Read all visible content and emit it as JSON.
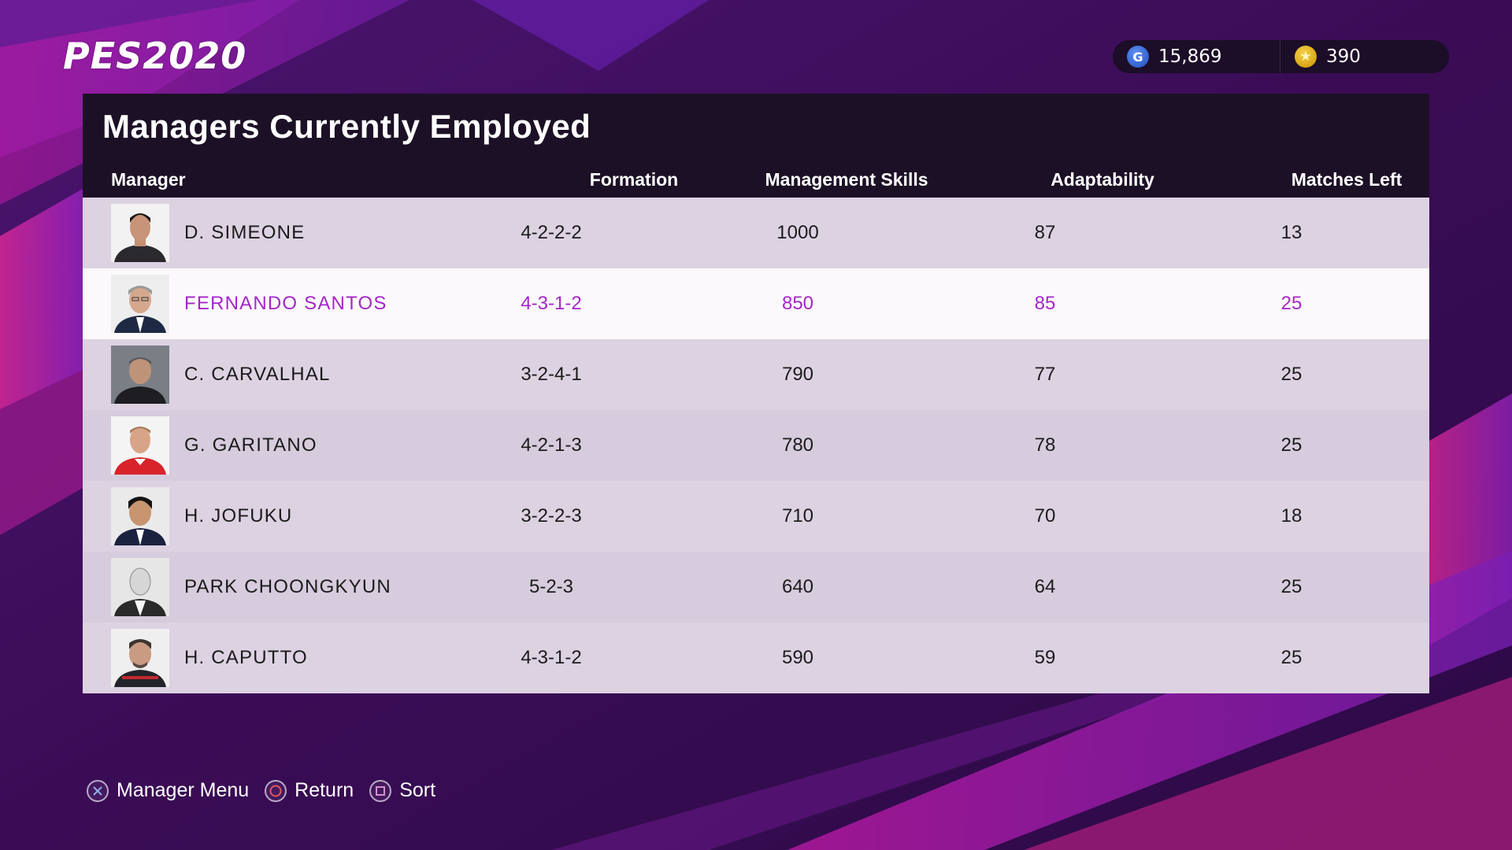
{
  "app": {
    "logo": "PES2020"
  },
  "currency": {
    "gp": {
      "icon": "gp-coin-icon",
      "symbol": "G",
      "value": "15,869"
    },
    "coins": {
      "icon": "star-coin-icon",
      "symbol": "★",
      "value": "390"
    }
  },
  "panel": {
    "title": "Managers Currently Employed",
    "columns": {
      "manager": "Manager",
      "formation": "Formation",
      "skills": "Management Skills",
      "adaptability": "Adaptability",
      "matches": "Matches Left"
    },
    "rows": [
      {
        "name": "D. SIMEONE",
        "formation": "4-2-2-2",
        "skills": "1000",
        "adaptability": "87",
        "matches": "13"
      },
      {
        "name": "FERNANDO SANTOS",
        "formation": "4-3-1-2",
        "skills": "850",
        "adaptability": "85",
        "matches": "25",
        "selected": true
      },
      {
        "name": "C. CARVALHAL",
        "formation": "3-2-4-1",
        "skills": "790",
        "adaptability": "77",
        "matches": "25"
      },
      {
        "name": "G. GARITANO",
        "formation": "4-2-1-3",
        "skills": "780",
        "adaptability": "78",
        "matches": "25"
      },
      {
        "name": "H. JOFUKU",
        "formation": "3-2-2-3",
        "skills": "710",
        "adaptability": "70",
        "matches": "18"
      },
      {
        "name": "PARK CHOONGKYUN",
        "formation": "5-2-3",
        "skills": "640",
        "adaptability": "64",
        "matches": "25"
      },
      {
        "name": "H. CAPUTTO",
        "formation": "4-3-1-2",
        "skills": "590",
        "adaptability": "59",
        "matches": "25"
      }
    ]
  },
  "footer": {
    "manager_menu": {
      "icon": "cross-button-icon",
      "label": "Manager Menu"
    },
    "return": {
      "icon": "circle-button-icon",
      "label": "Return"
    },
    "sort": {
      "icon": "square-button-icon",
      "label": "Sort"
    }
  },
  "colors": {
    "selected_text": "#a626c9",
    "panel_header": "#1c1026",
    "background": "#3a0d52"
  }
}
